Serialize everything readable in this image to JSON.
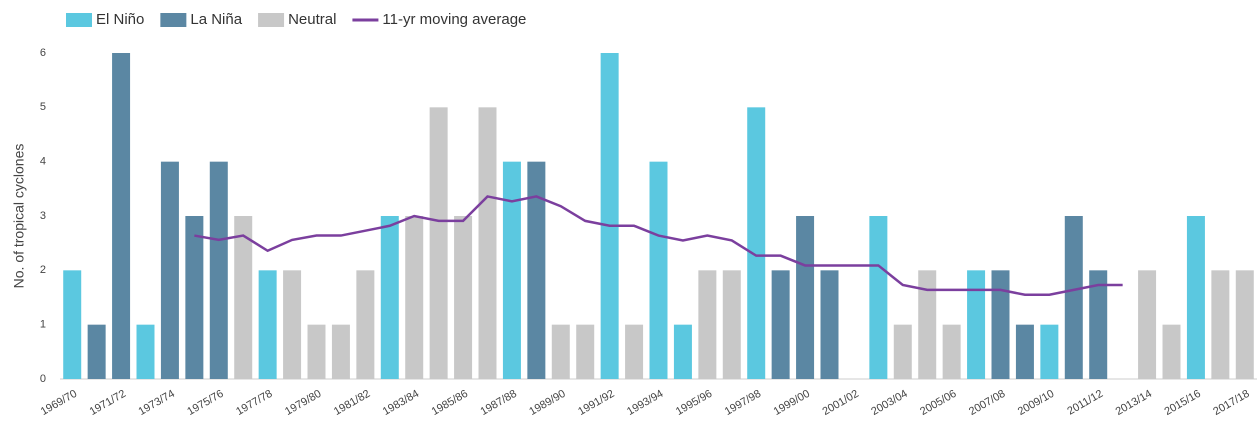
{
  "chart_data": {
    "type": "bar",
    "y_label": "No. of tropical cyclones",
    "categories": [
      "1969/70",
      null,
      "1971/72",
      null,
      "1973/74",
      null,
      "1975/76",
      null,
      "1977/78",
      null,
      "1979/80",
      null,
      "1981/82",
      null,
      "1983/84",
      null,
      "1985/86",
      null,
      "1987/88",
      null,
      "1989/90",
      null,
      "1991/92",
      null,
      "1993/94",
      null,
      "1995/96",
      null,
      "1997/98",
      null,
      "1999/00",
      null,
      "2001/02",
      null,
      "2003/04",
      null,
      "2005/06",
      null,
      "2007/08",
      null,
      "2009/10",
      null,
      "2011/12",
      null,
      "2013/14",
      null,
      "2015/16",
      null,
      "2017/18"
    ],
    "series": [
      {
        "name": "El Niño",
        "color": "#5bc8e0",
        "values": [
          2,
          null,
          null,
          1,
          null,
          null,
          null,
          null,
          2,
          null,
          null,
          null,
          null,
          3,
          null,
          null,
          null,
          null,
          4,
          null,
          null,
          null,
          6,
          null,
          4,
          1,
          null,
          null,
          5,
          null,
          null,
          null,
          null,
          3,
          null,
          null,
          null,
          2,
          null,
          null,
          1,
          null,
          null,
          null,
          null,
          null,
          3,
          null,
          null
        ]
      },
      {
        "name": "La Niña",
        "color": "#5b87a3",
        "values": [
          null,
          1,
          6,
          null,
          4,
          3,
          4,
          null,
          null,
          null,
          null,
          null,
          null,
          null,
          null,
          null,
          null,
          null,
          null,
          4,
          null,
          null,
          null,
          null,
          null,
          null,
          null,
          null,
          null,
          2,
          3,
          2,
          null,
          null,
          null,
          null,
          null,
          null,
          2,
          1,
          null,
          3,
          2,
          null,
          null,
          null,
          null,
          null,
          null
        ]
      },
      {
        "name": "Neutral",
        "color": "#c8c8c8",
        "values": [
          null,
          null,
          null,
          null,
          null,
          null,
          null,
          3,
          null,
          2,
          1,
          1,
          2,
          null,
          3,
          5,
          3,
          5,
          null,
          null,
          1,
          1,
          null,
          1,
          null,
          null,
          2,
          2,
          null,
          null,
          null,
          null,
          0,
          null,
          1,
          2,
          1,
          null,
          null,
          null,
          null,
          null,
          null,
          0,
          2,
          1,
          null,
          2,
          2
        ]
      },
      {
        "name": "11-yr moving average",
        "color": "#7b3f9e",
        "line": true,
        "values": [
          null,
          null,
          null,
          null,
          null,
          2.64,
          2.56,
          2.64,
          2.36,
          2.56,
          2.64,
          2.64,
          2.73,
          2.82,
          3.0,
          2.91,
          2.91,
          3.36,
          3.27,
          3.36,
          3.18,
          2.91,
          2.82,
          2.82,
          2.64,
          2.55,
          2.64,
          2.55,
          2.27,
          2.27,
          2.09,
          2.09,
          2.09,
          2.09,
          1.73,
          1.64,
          1.64,
          1.64,
          1.64,
          1.55,
          1.55,
          1.64,
          1.73,
          1.73,
          null,
          null,
          null,
          null,
          null
        ]
      }
    ],
    "ylim": [
      0,
      6
    ],
    "yticks": [
      0,
      1,
      2,
      3,
      4,
      5,
      6
    ]
  }
}
